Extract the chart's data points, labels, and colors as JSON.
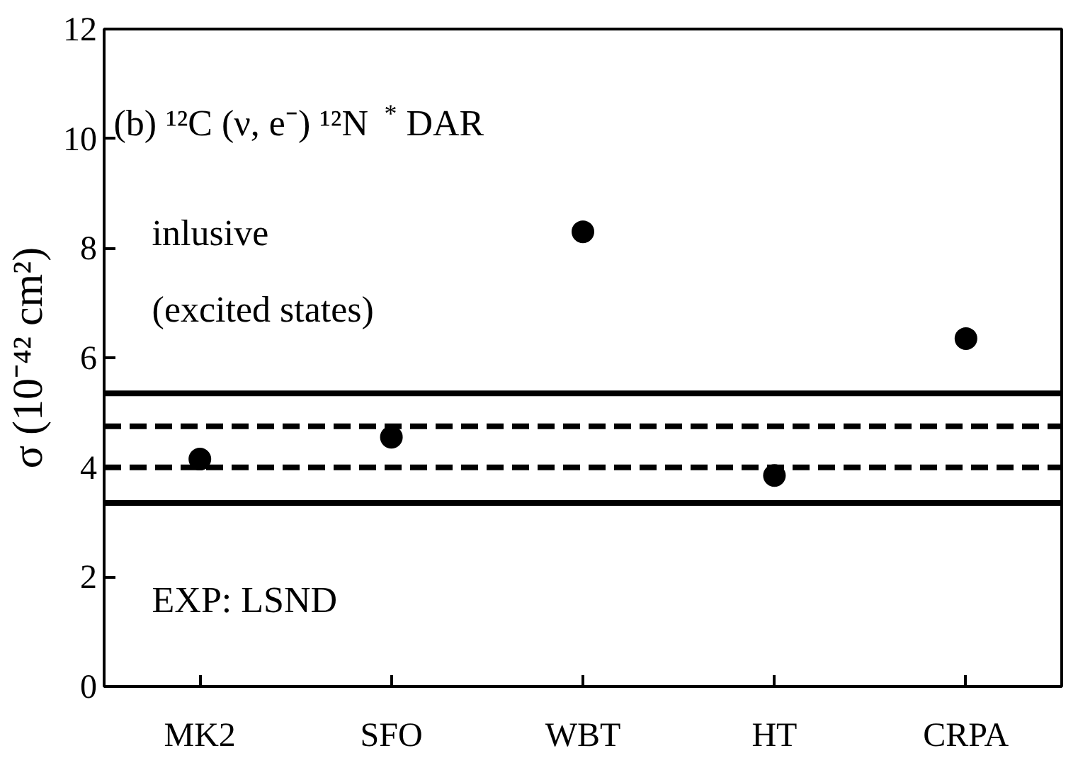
{
  "chart_data": {
    "type": "scatter",
    "ylabel": "σ (10⁻⁴² cm²)",
    "categories": [
      "MK2",
      "SFO",
      "WBT",
      "HT",
      "CRPA"
    ],
    "series": [
      {
        "color": "#000000",
        "values": [
          4.15,
          4.55,
          8.3,
          3.85,
          6.35
        ]
      }
    ],
    "ylim": [
      0,
      12
    ],
    "yticks": [
      0,
      2,
      4,
      6,
      8,
      10,
      12
    ],
    "grid": false,
    "marker": "circle",
    "ref_lines": [
      {
        "axis": "y",
        "value": 5.35,
        "label": null,
        "color": "#000000",
        "line_style": "solid"
      },
      {
        "axis": "y",
        "value": 4.75,
        "label": null,
        "color": "#000000",
        "line_style": "dashed"
      },
      {
        "axis": "y",
        "value": 4.0,
        "label": null,
        "color": "#000000",
        "line_style": "dashed"
      },
      {
        "axis": "y",
        "value": 3.35,
        "label": null,
        "color": "#000000",
        "line_style": "solid"
      }
    ],
    "annotations": [
      "(b) ¹²C (ν, e⁻) ¹²N$^{*}$ DAR",
      "inlusive",
      "(excited states)",
      "EXP: LSND"
    ]
  }
}
